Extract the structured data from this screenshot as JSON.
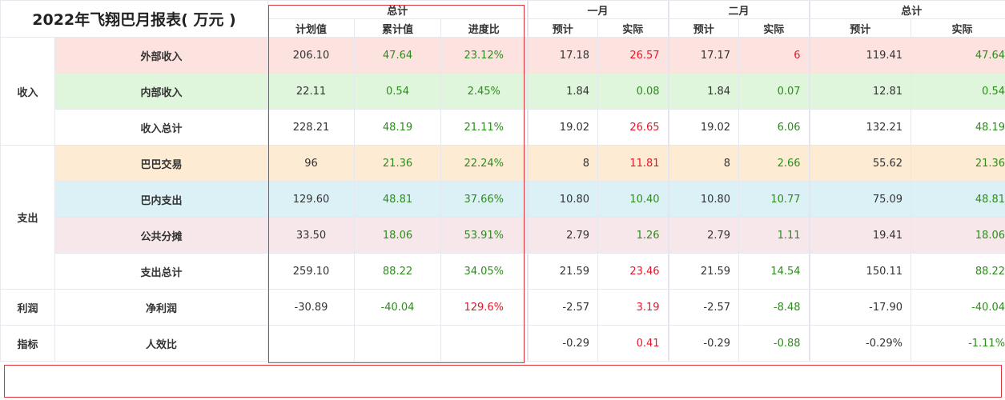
{
  "title": "2022年飞翔巴月报表( 万元 )",
  "headers": {
    "total_left": "总计",
    "jan": "一月",
    "feb": "二月",
    "total_right": "总计",
    "plan": "计划值",
    "cumulative": "累计值",
    "progress": "进度比",
    "forecast": "预计",
    "actual": "实际"
  },
  "groups": {
    "income": "收入",
    "expense": "支出",
    "profit": "利润",
    "indicator": "指标"
  },
  "rows": [
    {
      "label": "外部收入",
      "plan": "206.10",
      "cum": "47.64",
      "prog": "23.12%",
      "jan_f": "17.18",
      "jan_a": "26.57",
      "feb_f": "17.17",
      "feb_a": "6",
      "tot_f": "119.41",
      "tot_a": "47.64"
    },
    {
      "label": "内部收入",
      "plan": "22.11",
      "cum": "0.54",
      "prog": "2.45%",
      "jan_f": "1.84",
      "jan_a": "0.08",
      "feb_f": "1.84",
      "feb_a": "0.07",
      "tot_f": "12.81",
      "tot_a": "0.54"
    },
    {
      "label": "收入总计",
      "plan": "228.21",
      "cum": "48.19",
      "prog": "21.11%",
      "jan_f": "19.02",
      "jan_a": "26.65",
      "feb_f": "19.02",
      "feb_a": "6.06",
      "tot_f": "132.21",
      "tot_a": "48.19"
    },
    {
      "label": "巴巴交易",
      "plan": "96",
      "cum": "21.36",
      "prog": "22.24%",
      "jan_f": "8",
      "jan_a": "11.81",
      "feb_f": "8",
      "feb_a": "2.66",
      "tot_f": "55.62",
      "tot_a": "21.36"
    },
    {
      "label": "巴内支出",
      "plan": "129.60",
      "cum": "48.81",
      "prog": "37.66%",
      "jan_f": "10.80",
      "jan_a": "10.40",
      "feb_f": "10.80",
      "feb_a": "10.77",
      "tot_f": "75.09",
      "tot_a": "48.81"
    },
    {
      "label": "公共分摊",
      "plan": "33.50",
      "cum": "18.06",
      "prog": "53.91%",
      "jan_f": "2.79",
      "jan_a": "1.26",
      "feb_f": "2.79",
      "feb_a": "1.11",
      "tot_f": "19.41",
      "tot_a": "18.06"
    },
    {
      "label": "支出总计",
      "plan": "259.10",
      "cum": "88.22",
      "prog": "34.05%",
      "jan_f": "21.59",
      "jan_a": "23.46",
      "feb_f": "21.59",
      "feb_a": "14.54",
      "tot_f": "150.11",
      "tot_a": "88.22"
    },
    {
      "label": "净利润",
      "plan": "-30.89",
      "cum": "-40.04",
      "prog": "129.6%",
      "jan_f": "-2.57",
      "jan_a": "3.19",
      "feb_f": "-2.57",
      "feb_a": "-8.48",
      "tot_f": "-17.90",
      "tot_a": "-40.04"
    },
    {
      "label": "人效比",
      "plan": "",
      "cum": "",
      "prog": "",
      "jan_f": "-0.29",
      "jan_a": "0.41",
      "feb_f": "-0.29",
      "feb_a": "-0.88",
      "tot_f": "-0.29%",
      "tot_a": "-1.11%"
    }
  ],
  "colors": {
    "positive": "#2e8b1d",
    "negative": "#e8152a",
    "row_external_income": "#fde3df",
    "row_internal_income": "#dff5dc",
    "row_baba_trade": "#fdebd3",
    "row_internal_expense": "#dcf1f6",
    "row_shared_cost": "#f7e7ea",
    "highlight_box": "#e0323a"
  }
}
